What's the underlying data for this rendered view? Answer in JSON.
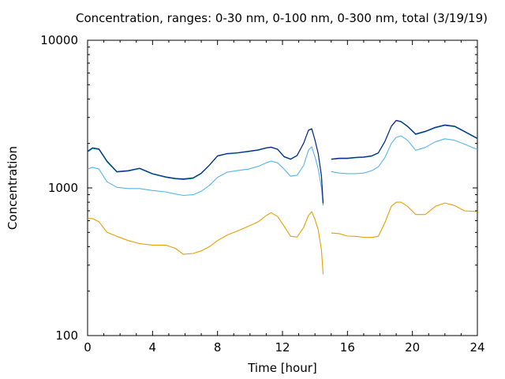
{
  "chart_data": {
    "type": "line",
    "title": "Concentration, ranges: 0-30 nm, 0-100 nm, 0-300 nm, total (3/19/19)",
    "xlabel": "Time [hour]",
    "ylabel": "Concentration",
    "xlim": [
      0,
      24
    ],
    "ylim": [
      100,
      10000
    ],
    "yscale": "log",
    "grid": false,
    "legend": "none",
    "x_ticks": [
      0,
      4,
      8,
      12,
      16,
      20,
      24
    ],
    "x_tick_labels": [
      "0",
      "4",
      "8",
      "12",
      "16",
      "20",
      "24"
    ],
    "y_ticks": [
      100,
      1000,
      10000
    ],
    "y_tick_labels": [
      "100",
      "1000",
      "10000"
    ],
    "gap_after_hour": 14.5,
    "series": [
      {
        "color": "#e69f00",
        "x": [
          0,
          0.3,
          0.7,
          1.2,
          1.8,
          2.5,
          3.2,
          4,
          4.8,
          5.4,
          5.9,
          6.5,
          7,
          7.5,
          8,
          8.6,
          9.2,
          9.9,
          10.5,
          11,
          11.3,
          11.7,
          12.1,
          12.5,
          12.9,
          13.3,
          13.6,
          13.8,
          14.0,
          14.2,
          14.4,
          14.5,
          15.0,
          15.5,
          16.0,
          16.5,
          17.0,
          17.5,
          17.9,
          18.3,
          18.7,
          19.0,
          19.3,
          19.7,
          20.2,
          20.8,
          21.4,
          22.0,
          22.6,
          23.2,
          24
        ],
        "y": [
          620,
          620,
          590,
          500,
          470,
          440,
          420,
          410,
          410,
          390,
          355,
          360,
          375,
          400,
          440,
          480,
          510,
          550,
          590,
          650,
          680,
          640,
          550,
          470,
          465,
          540,
          650,
          690,
          610,
          520,
          380,
          260,
          495,
          490,
          472,
          470,
          463,
          462,
          470,
          580,
          750,
          800,
          800,
          750,
          660,
          660,
          750,
          790,
          760,
          700,
          690
        ]
      },
      {
        "color": "#56b4e9",
        "x": [
          0,
          0.3,
          0.7,
          1.2,
          1.8,
          2.5,
          3.2,
          4,
          4.8,
          5.4,
          5.9,
          6.5,
          7,
          7.5,
          8,
          8.6,
          9.2,
          9.9,
          10.5,
          11,
          11.3,
          11.7,
          12.1,
          12.5,
          12.9,
          13.3,
          13.6,
          13.8,
          14.0,
          14.2,
          14.4,
          14.5,
          15.0,
          15.5,
          16.0,
          16.5,
          17.0,
          17.5,
          17.9,
          18.3,
          18.7,
          19.0,
          19.3,
          19.7,
          20.2,
          20.8,
          21.4,
          22.0,
          22.6,
          23.2,
          24
        ],
        "y": [
          1340,
          1380,
          1340,
          1100,
          1010,
          990,
          990,
          960,
          940,
          910,
          890,
          900,
          950,
          1040,
          1180,
          1280,
          1310,
          1340,
          1400,
          1480,
          1520,
          1480,
          1340,
          1200,
          1220,
          1420,
          1800,
          1900,
          1620,
          1350,
          1000,
          760,
          1290,
          1260,
          1250,
          1250,
          1260,
          1310,
          1390,
          1600,
          2000,
          2200,
          2250,
          2100,
          1800,
          1880,
          2050,
          2150,
          2100,
          1980,
          1820
        ]
      },
      {
        "color": "#009e73",
        "x": [
          0,
          0.3,
          0.7,
          1.2,
          1.8,
          2.5,
          3.2,
          4,
          4.8,
          5.4,
          5.9,
          6.5,
          7,
          7.5,
          8,
          8.6,
          9.2,
          9.9,
          10.5,
          11,
          11.3,
          11.7,
          12.1,
          12.5,
          12.9,
          13.3,
          13.6,
          13.8,
          14.0,
          14.2,
          14.4,
          14.5,
          15.0,
          15.5,
          16.0,
          16.5,
          17.0,
          17.5,
          17.9,
          18.3,
          18.7,
          19.0,
          19.3,
          19.7,
          20.2,
          20.8,
          21.4,
          22.0,
          22.6,
          23.2,
          24
        ],
        "y": [
          1750,
          1850,
          1820,
          1500,
          1280,
          1300,
          1350,
          1240,
          1180,
          1150,
          1140,
          1160,
          1250,
          1420,
          1640,
          1700,
          1720,
          1760,
          1800,
          1860,
          1880,
          1820,
          1620,
          1560,
          1650,
          2000,
          2450,
          2500,
          2100,
          1700,
          1200,
          780,
          1560,
          1580,
          1580,
          1600,
          1610,
          1640,
          1720,
          2050,
          2600,
          2850,
          2800,
          2600,
          2300,
          2400,
          2550,
          2650,
          2600,
          2400,
          2150
        ]
      },
      {
        "color": "#0f1f8f",
        "x": [
          0,
          0.3,
          0.7,
          1.2,
          1.8,
          2.5,
          3.2,
          4,
          4.8,
          5.4,
          5.9,
          6.5,
          7,
          7.5,
          8,
          8.6,
          9.2,
          9.9,
          10.5,
          11,
          11.3,
          11.7,
          12.1,
          12.5,
          12.9,
          13.3,
          13.6,
          13.8,
          14.0,
          14.2,
          14.4,
          14.5,
          15.0,
          15.5,
          16.0,
          16.5,
          17.0,
          17.5,
          17.9,
          18.3,
          18.7,
          19.0,
          19.3,
          19.7,
          20.2,
          20.8,
          21.4,
          22.0,
          22.6,
          23.2,
          24
        ],
        "y": [
          1770,
          1870,
          1840,
          1520,
          1290,
          1310,
          1360,
          1250,
          1190,
          1160,
          1150,
          1170,
          1260,
          1430,
          1650,
          1710,
          1730,
          1770,
          1810,
          1870,
          1890,
          1830,
          1630,
          1570,
          1660,
          2010,
          2460,
          2520,
          2110,
          1710,
          1210,
          790,
          1570,
          1590,
          1590,
          1610,
          1620,
          1650,
          1730,
          2060,
          2620,
          2870,
          2820,
          2620,
          2320,
          2420,
          2570,
          2670,
          2620,
          2420,
          2170
        ]
      }
    ]
  }
}
